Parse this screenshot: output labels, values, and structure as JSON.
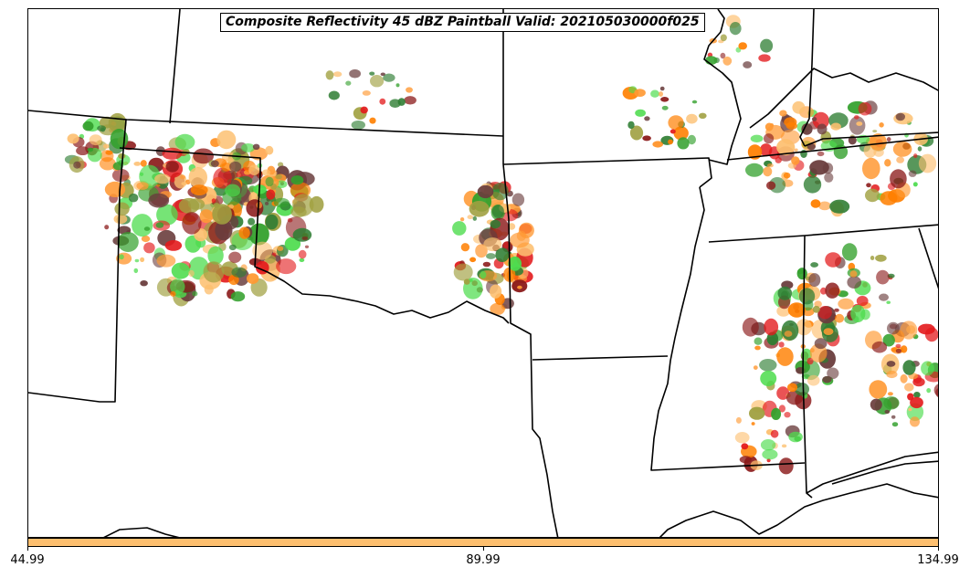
{
  "title": "Composite Reflectivity 45 dBZ Paintball Valid: 202105030000f025",
  "colorbar": {
    "color": "#fdbf6f",
    "tick_labels": [
      "44.99",
      "89.99",
      "134.99"
    ]
  },
  "member_colors": [
    "#e31a1c",
    "#ff7f00",
    "#fdbf6f",
    "#33a02c",
    "#4ddc4d",
    "#6a3d3d",
    "#8b1a1a",
    "#a0a040",
    "#2e7d32",
    "#ff9933"
  ],
  "map": {
    "boundaries": "state-borders",
    "region": "southern-plains-and-southeast-us"
  }
}
